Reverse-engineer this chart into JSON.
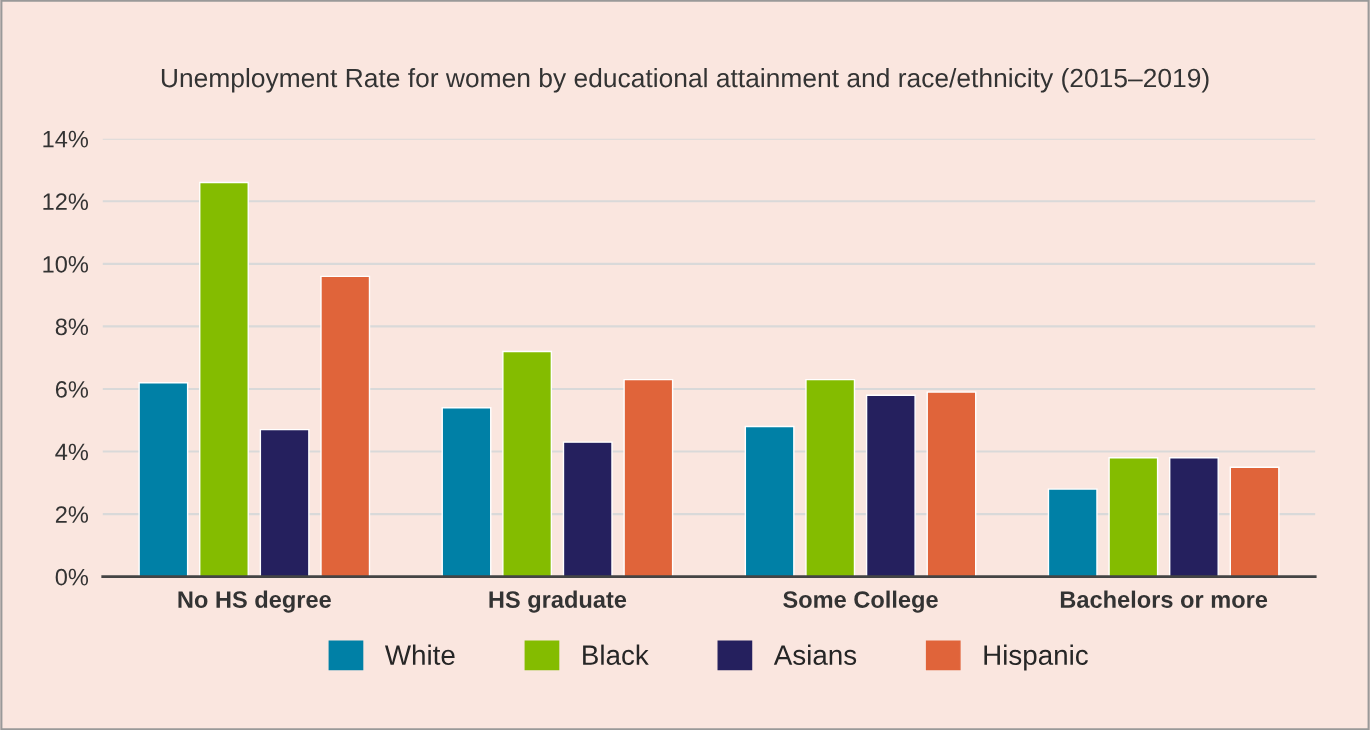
{
  "chart_data": {
    "type": "bar",
    "title": "Unemployment Rate for women by educational attainment and race/ethnicity (2015–2019)",
    "categories": [
      "No HS degree",
      "HS graduate",
      "Some College",
      "Bachelors or more"
    ],
    "series": [
      {
        "name": "White",
        "color": "#0080a6",
        "values": [
          6.2,
          5.4,
          4.8,
          2.8
        ]
      },
      {
        "name": "Black",
        "color": "#84bc00",
        "values": [
          12.6,
          7.2,
          6.3,
          3.8
        ]
      },
      {
        "name": "Asians",
        "color": "#25205e",
        "values": [
          4.7,
          4.3,
          5.8,
          3.8
        ]
      },
      {
        "name": "Hispanic",
        "color": "#e0643a",
        "values": [
          9.6,
          6.3,
          5.9,
          3.5
        ]
      }
    ],
    "ylim": [
      0,
      14
    ],
    "yticks": [
      {
        "value": 0,
        "label": "0%"
      },
      {
        "value": 2,
        "label": "2%"
      },
      {
        "value": 4,
        "label": "4%"
      },
      {
        "value": 6,
        "label": "6%"
      },
      {
        "value": 8,
        "label": "8%"
      },
      {
        "value": 10,
        "label": "10%"
      },
      {
        "value": 12,
        "label": "12%"
      },
      {
        "value": 14,
        "label": "14%"
      }
    ],
    "grid": "y",
    "legend": "bottom"
  }
}
